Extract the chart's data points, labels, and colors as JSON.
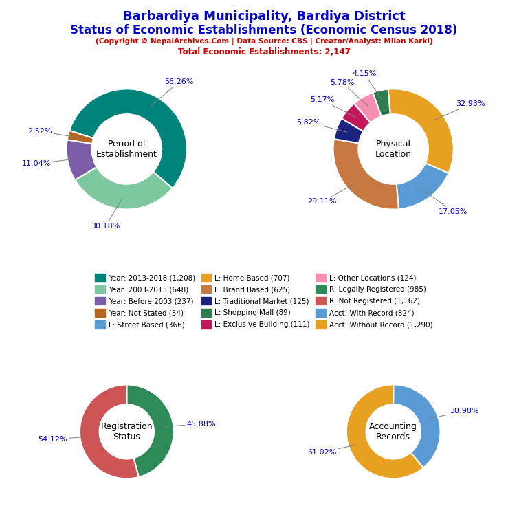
{
  "title_line1": "Barbardiya Municipality, Bardiya District",
  "title_line2": "Status of Economic Establishments (Economic Census 2018)",
  "subtitle": "(Copyright © NepalArchives.Com | Data Source: CBS | Creator/Analyst: Milan Karki)",
  "total_line": "Total Economic Establishments: 2,147",
  "title_color": "#0000CC",
  "subtitle_color": "#CC0000",
  "pct_label_color": "#0000CC",
  "chart1_title": "Period of\nEstablishment",
  "chart1_values": [
    1208,
    648,
    237,
    54
  ],
  "chart1_colors": [
    "#00837A",
    "#7EC8A0",
    "#7B5EA7",
    "#B5651D"
  ],
  "chart1_labels": [
    "56.26%",
    "30.18%",
    "11.04%",
    "2.52%"
  ],
  "chart1_startangle": 162,
  "chart2_title": "Physical\nLocation",
  "chart2_values": [
    707,
    366,
    625,
    125,
    111,
    124,
    89
  ],
  "chart2_colors": [
    "#E8A020",
    "#5B9BD5",
    "#C87941",
    "#1A237E",
    "#C2185B",
    "#F48FB1",
    "#2E7D4F"
  ],
  "chart2_labels": [
    "32.93%",
    "17.05%",
    "29.11%",
    "5.82%",
    "5.17%",
    "5.78%",
    "4.15%"
  ],
  "chart2_startangle": 95,
  "chart3_title": "Registration\nStatus",
  "chart3_values": [
    985,
    1162
  ],
  "chart3_colors": [
    "#2E8B57",
    "#CD5555"
  ],
  "chart3_labels": [
    "45.88%",
    "54.12%"
  ],
  "chart3_startangle": 90,
  "chart4_title": "Accounting\nRecords",
  "chart4_values": [
    824,
    1290
  ],
  "chart4_colors": [
    "#5B9BD5",
    "#E8A020"
  ],
  "chart4_labels": [
    "38.98%",
    "61.02%"
  ],
  "chart4_startangle": 90,
  "legend_items": [
    {
      "label": "Year: 2013-2018 (1,208)",
      "color": "#00837A"
    },
    {
      "label": "Year: 2003-2013 (648)",
      "color": "#7EC8A0"
    },
    {
      "label": "Year: Before 2003 (237)",
      "color": "#7B5EA7"
    },
    {
      "label": "Year: Not Stated (54)",
      "color": "#B5651D"
    },
    {
      "label": "L: Street Based (366)",
      "color": "#5B9BD5"
    },
    {
      "label": "L: Home Based (707)",
      "color": "#E8A020"
    },
    {
      "label": "L: Brand Based (625)",
      "color": "#C87941"
    },
    {
      "label": "L: Traditional Market (125)",
      "color": "#1A237E"
    },
    {
      "label": "L: Shopping Mall (89)",
      "color": "#2E7D4F"
    },
    {
      "label": "L: Exclusive Building (111)",
      "color": "#C2185B"
    },
    {
      "label": "L: Other Locations (124)",
      "color": "#F48FB1"
    },
    {
      "label": "R: Legally Registered (985)",
      "color": "#2E8B57"
    },
    {
      "label": "R: Not Registered (1,162)",
      "color": "#CD5555"
    },
    {
      "label": "Acct: With Record (824)",
      "color": "#5B9BD5"
    },
    {
      "label": "Acct: Without Record (1,290)",
      "color": "#E8A020"
    }
  ],
  "bg_color": "#FFFFFF"
}
